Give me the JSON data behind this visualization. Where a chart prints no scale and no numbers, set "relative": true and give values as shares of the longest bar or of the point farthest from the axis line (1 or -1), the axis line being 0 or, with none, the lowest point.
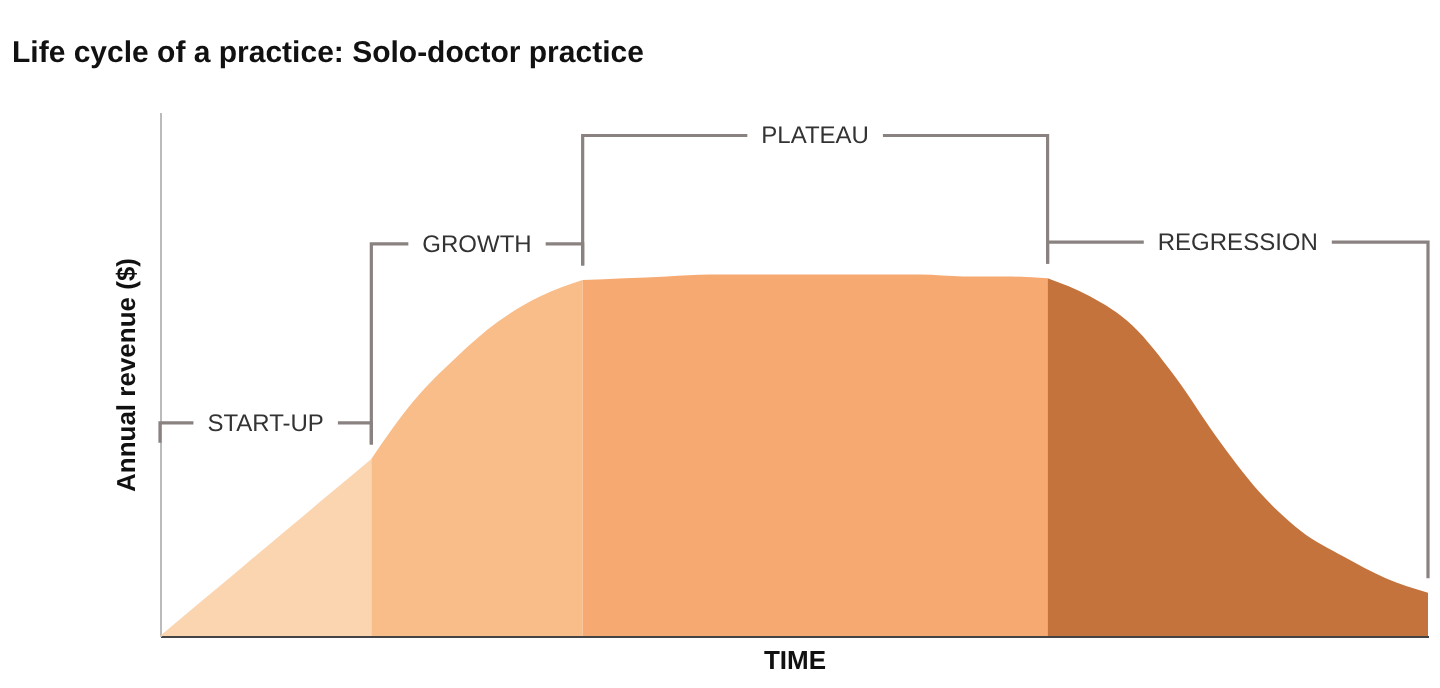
{
  "chart_data": {
    "type": "area",
    "title": "Life cycle of a practice: Solo-doctor practice",
    "xlabel": "TIME",
    "ylabel": "Annual revenue ($)",
    "relative": true,
    "categories": [
      null,
      null,
      null,
      null,
      null,
      null,
      null,
      null,
      null,
      null,
      null,
      null,
      null,
      null,
      null,
      null,
      null,
      null,
      null,
      null,
      null,
      null,
      null,
      null,
      null,
      null,
      null,
      null,
      null,
      null,
      null
    ],
    "series": [
      {
        "color": "#fbd5b0",
        "values": [
          0,
          0.098,
          0.196,
          0.294,
          0.392,
          0.49,
          null,
          null,
          null,
          null,
          null,
          null,
          null,
          null,
          null,
          null,
          null,
          null,
          null,
          null,
          null,
          null,
          null,
          null,
          null,
          null,
          null,
          null,
          null,
          null,
          null
        ]
      },
      {
        "color": "#f9bd8a",
        "values": [
          null,
          null,
          null,
          null,
          null,
          0.49,
          0.65,
          0.77,
          0.87,
          0.94,
          0.985,
          null,
          null,
          null,
          null,
          null,
          null,
          null,
          null,
          null,
          null,
          null,
          null,
          null,
          null,
          null,
          null,
          null,
          null,
          null,
          null
        ]
      },
      {
        "color": "#f6aa72",
        "values": [
          null,
          null,
          null,
          null,
          null,
          null,
          null,
          null,
          null,
          null,
          0.985,
          0.99,
          0.995,
          1,
          1,
          1,
          1,
          1,
          1,
          0.995,
          0.995,
          0.99,
          null,
          null,
          null,
          null,
          null,
          null,
          null,
          null,
          null
        ]
      },
      {
        "color": "#c5733c",
        "values": [
          null,
          null,
          null,
          null,
          null,
          null,
          null,
          null,
          null,
          null,
          null,
          null,
          null,
          null,
          null,
          null,
          null,
          null,
          null,
          null,
          null,
          0.99,
          0.94,
          0.86,
          0.72,
          0.55,
          0.4,
          0.29,
          0.22,
          0.16,
          0.12
        ]
      }
    ],
    "annotations": [
      "START-UP",
      "GROWTH",
      "PLATEAU",
      "REGRESSION"
    ]
  }
}
